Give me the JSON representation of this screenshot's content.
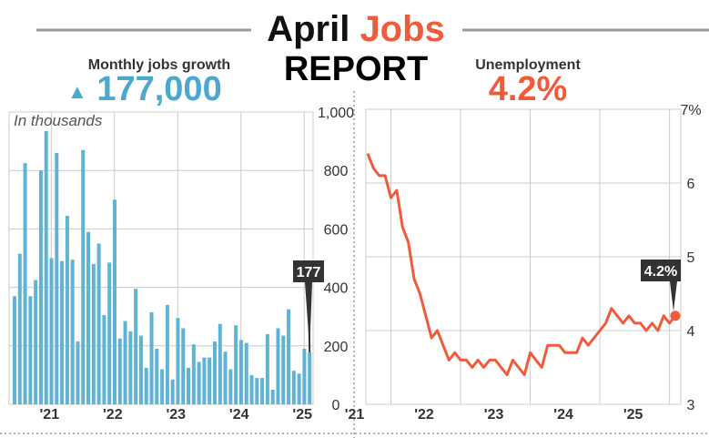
{
  "header": {
    "title_part1": "April",
    "title_part2": "Jobs",
    "title_line2": "REPORT"
  },
  "colors": {
    "bar": "#5fb3d4",
    "jobs_accent": "#4ca8cf",
    "line": "#f05c3b",
    "title_dark": "#111111",
    "grid": "#cccccc",
    "callout_bg": "#333333"
  },
  "chart_data": [
    {
      "type": "bar",
      "title": "Monthly jobs growth",
      "headline": "177,000",
      "headline_arrow": "▲",
      "annotation": "In thousands",
      "callout": "177",
      "ylim": [
        0,
        1000
      ],
      "yticks": [
        "0",
        "200",
        "400",
        "600",
        "800",
        "1,000"
      ],
      "ytick_values": [
        0,
        200,
        400,
        600,
        800,
        1000
      ],
      "xticks": [
        {
          "label": "'21",
          "index": 8
        },
        {
          "label": "'22",
          "index": 20
        },
        {
          "label": "'23",
          "index": 32
        },
        {
          "label": "'24",
          "index": 44
        },
        {
          "label": "'25",
          "index": 56
        }
      ],
      "grid": true,
      "values": [
        370,
        515,
        825,
        370,
        425,
        800,
        935,
        500,
        860,
        490,
        645,
        495,
        215,
        870,
        590,
        480,
        550,
        305,
        485,
        700,
        225,
        285,
        250,
        395,
        235,
        125,
        315,
        190,
        120,
        340,
        85,
        295,
        260,
        125,
        205,
        145,
        160,
        160,
        215,
        275,
        180,
        120,
        270,
        220,
        210,
        100,
        90,
        90,
        240,
        50,
        260,
        235,
        325,
        115,
        105,
        190,
        177
      ]
    },
    {
      "type": "line",
      "title": "Unemployment",
      "headline": "4.2%",
      "callout": "4.2%",
      "ylim": [
        3,
        7
      ],
      "yticks": [
        "3",
        "4",
        "5",
        "6",
        "7%"
      ],
      "ytick_values": [
        3,
        4,
        5,
        6,
        7
      ],
      "xticks": [
        {
          "label": "'21",
          "index": 4
        },
        {
          "label": "'22",
          "index": 16
        },
        {
          "label": "'23",
          "index": 28
        },
        {
          "label": "'24",
          "index": 40
        },
        {
          "label": "'25",
          "index": 52
        }
      ],
      "grid": true,
      "values": [
        6.4,
        6.2,
        6.1,
        6.1,
        5.8,
        5.9,
        5.4,
        5.2,
        4.7,
        4.5,
        4.2,
        3.9,
        4.0,
        3.8,
        3.6,
        3.7,
        3.6,
        3.6,
        3.5,
        3.6,
        3.5,
        3.6,
        3.6,
        3.5,
        3.4,
        3.6,
        3.5,
        3.4,
        3.7,
        3.6,
        3.5,
        3.8,
        3.8,
        3.8,
        3.7,
        3.7,
        3.7,
        3.9,
        3.8,
        3.9,
        4.0,
        4.1,
        4.3,
        4.2,
        4.1,
        4.2,
        4.1,
        4.1,
        4.0,
        4.1,
        4.0,
        4.2,
        4.1,
        4.2
      ]
    }
  ]
}
